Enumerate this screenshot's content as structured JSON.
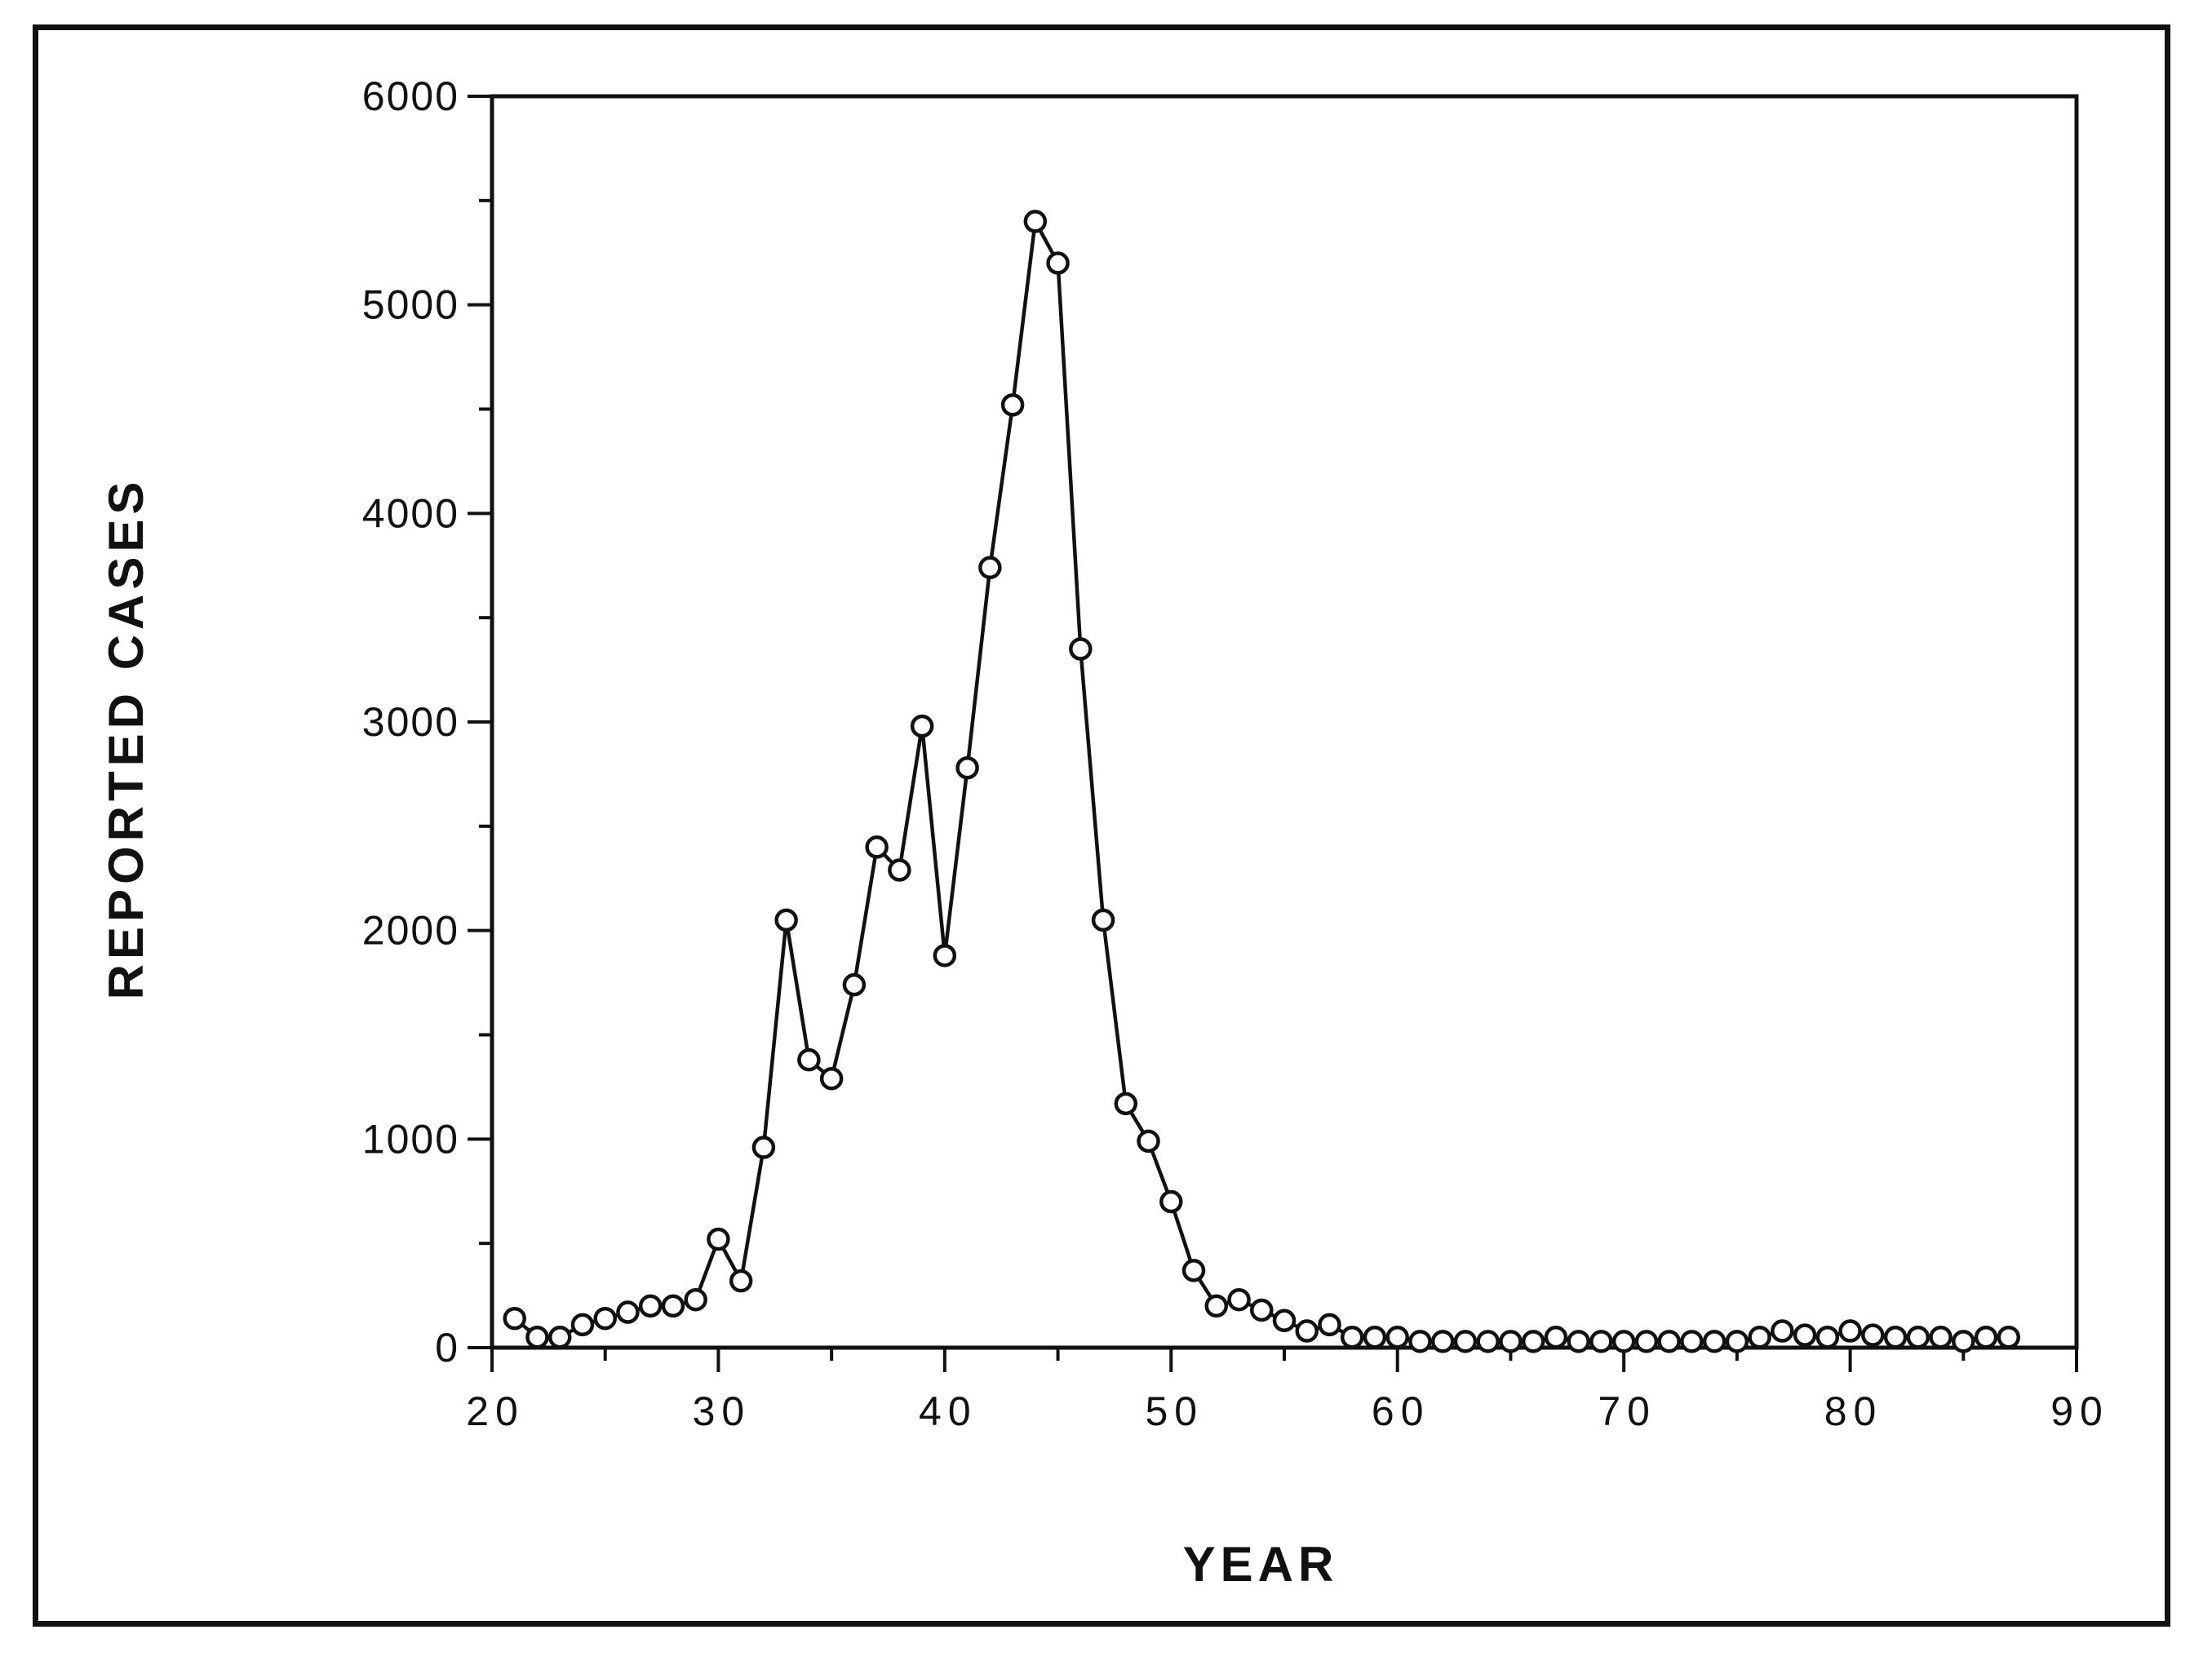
{
  "chart_data": {
    "type": "line",
    "title": "",
    "xlabel": "YEAR",
    "ylabel": "REPORTED CASES",
    "xlim": [
      20,
      90
    ],
    "ylim": [
      0,
      6000
    ],
    "xticks": [
      20,
      30,
      40,
      50,
      60,
      70,
      80,
      90
    ],
    "yticks": [
      0,
      1000,
      2000,
      3000,
      4000,
      5000,
      6000
    ],
    "xtick_labels": [
      "20",
      "30",
      "40",
      "50",
      "60",
      "70",
      "80",
      "90"
    ],
    "ytick_labels": [
      "0",
      "1000",
      "2000",
      "3000",
      "4000",
      "5000",
      "6000"
    ],
    "grid": false,
    "marker": "open-circle",
    "line_color": "#111111",
    "series": [
      {
        "x": [
          21,
          22,
          23,
          24,
          25,
          26,
          27,
          28,
          29,
          30,
          31,
          32,
          33,
          34,
          35,
          36,
          37,
          38,
          39,
          40,
          41,
          42,
          43,
          44,
          45,
          46,
          47,
          48,
          49,
          50,
          51,
          52,
          53,
          54,
          55,
          56,
          57,
          58,
          59,
          60,
          61,
          62,
          63,
          64,
          65,
          66,
          67,
          68,
          69,
          70,
          71,
          72,
          73,
          74,
          75,
          76,
          77,
          78,
          79,
          80,
          81,
          82,
          83,
          84,
          85,
          86,
          87
        ],
        "values": [
          140,
          50,
          50,
          110,
          140,
          170,
          200,
          200,
          230,
          520,
          320,
          960,
          2050,
          1380,
          1290,
          1740,
          2400,
          2290,
          2980,
          1880,
          2780,
          3740,
          4520,
          5400,
          5200,
          3350,
          2050,
          1170,
          990,
          700,
          370,
          200,
          230,
          180,
          130,
          80,
          110,
          50,
          50,
          50,
          30,
          30,
          30,
          30,
          30,
          30,
          50,
          30,
          30,
          30,
          30,
          30,
          30,
          30,
          30,
          50,
          80,
          60,
          50,
          80,
          60,
          50,
          50,
          50,
          30,
          50,
          50
        ]
      }
    ]
  }
}
